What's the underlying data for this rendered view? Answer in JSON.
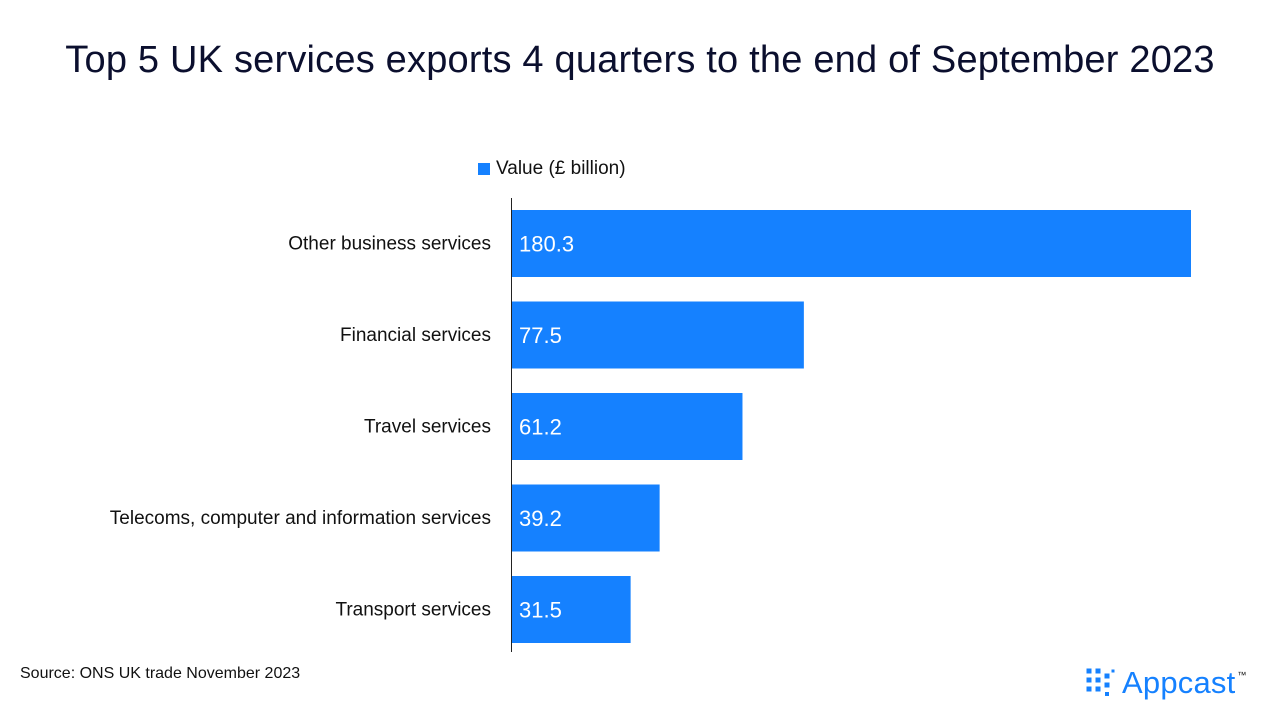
{
  "colors": {
    "bar": "#1581ff",
    "title": "#0b0f2e",
    "axis": "#222222",
    "bar_label": "#ffffff",
    "brand": "#1581ff"
  },
  "chart_data": {
    "type": "bar",
    "orientation": "horizontal",
    "title": "Top 5 UK services exports 4 quarters to the end of September 2023",
    "categories": [
      "Other business services",
      "Financial services",
      "Travel services",
      "Telecoms, computer and information services",
      "Transport services"
    ],
    "series": [
      {
        "name": "Value (£ billion)",
        "values": [
          180.3,
          77.5,
          61.2,
          39.2,
          31.5
        ]
      }
    ],
    "value_labels": [
      "180.3",
      "77.5",
      "61.2",
      "39.2",
      "31.5"
    ],
    "xlim": [
      0,
      180.3
    ],
    "xlabel": "",
    "ylabel": "",
    "grid": false,
    "legend_position": "top"
  },
  "footer": {
    "source": "Source: ONS UK trade November 2023"
  },
  "logo": {
    "text": "Appcast",
    "trademark": "™",
    "icon": "appcast-dots-icon"
  }
}
